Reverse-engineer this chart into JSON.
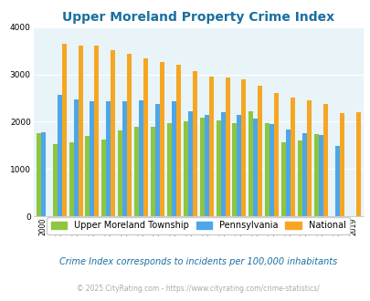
{
  "title": "Upper Moreland Property Crime Index",
  "years": [
    2000,
    2001,
    2002,
    2003,
    2004,
    2005,
    2006,
    2007,
    2008,
    2009,
    2010,
    2011,
    2012,
    2013,
    2014,
    2015,
    2016,
    2017,
    2018,
    2019
  ],
  "upper_moreland": [
    1760,
    1520,
    1570,
    1700,
    1620,
    1810,
    1900,
    1890,
    1960,
    2000,
    2080,
    2020,
    1960,
    2210,
    1970,
    1560,
    1610,
    1730,
    null,
    null
  ],
  "pennsylvania": [
    1780,
    2570,
    2470,
    2440,
    2440,
    2440,
    2460,
    2380,
    2440,
    2210,
    2150,
    2200,
    2150,
    2060,
    1950,
    1840,
    1750,
    1710,
    1490,
    null
  ],
  "national": [
    null,
    3650,
    3610,
    3600,
    3510,
    3430,
    3340,
    3270,
    3210,
    3060,
    2960,
    2930,
    2900,
    2750,
    2600,
    2500,
    2460,
    2380,
    2190,
    2200
  ],
  "colors": {
    "upper_moreland": "#8dc63f",
    "pennsylvania": "#4da6e8",
    "national": "#f5a623"
  },
  "ylim": [
    0,
    4000
  ],
  "yticks": [
    0,
    1000,
    2000,
    3000,
    4000
  ],
  "bg_color": "#e8f4f8",
  "legend_labels": [
    "Upper Moreland Township",
    "Pennsylvania",
    "National"
  ],
  "footnote1": "Crime Index corresponds to incidents per 100,000 inhabitants",
  "footnote2": "© 2025 CityRating.com - https://www.cityrating.com/crime-statistics/",
  "title_color": "#1a6fa0",
  "footnote1_color": "#1a6fa0",
  "footnote2_color": "#aaaaaa"
}
